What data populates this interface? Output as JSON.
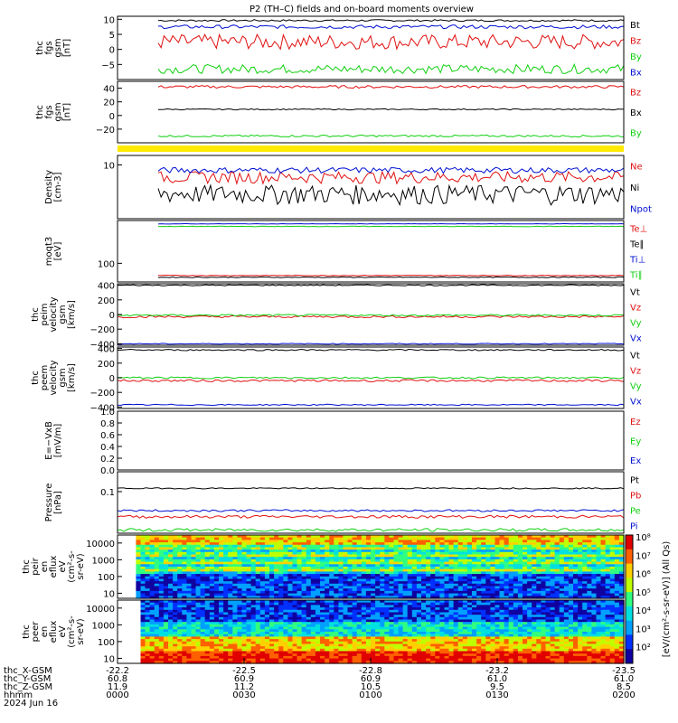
{
  "title": "P2 (TH–C) fields and on-board moments overview",
  "colors": {
    "black": "#000000",
    "red": "#e01010",
    "green": "#10d010",
    "blue": "#0010d0",
    "yellow": "#ffea00"
  },
  "colorbar": {
    "label": "[eV/(cm²-s-sr-eV)] (All Qs)",
    "ticks": [
      "10⁸",
      "10⁷",
      "10⁶",
      "10⁵",
      "10⁴",
      "10³",
      "10²"
    ]
  },
  "ephemeris": {
    "labels": [
      "thc_X-GSM",
      "thc_Y-GSM",
      "thc_Z-GSM",
      "hhmm",
      "2024 Jun 16"
    ],
    "columns": [
      [
        "-22.2",
        "60.8",
        "11.9",
        "0000"
      ],
      [
        "-22.5",
        "60.9",
        "11.2",
        "0030"
      ],
      [
        "-22.8",
        "60.9",
        "10.5",
        "0100"
      ],
      [
        "-23.2",
        "61.0",
        "9.5",
        "0130"
      ],
      [
        "-23.5",
        "61.0",
        "8.5",
        "0200"
      ]
    ]
  },
  "chart_data": [
    {
      "type": "line",
      "ylabel": [
        "thc",
        "fgs",
        "gsm",
        "[nT]"
      ],
      "ylim": [
        -10,
        11
      ],
      "yticks": [
        "10",
        "5",
        "0",
        "−5"
      ],
      "legend": [
        "Bt",
        "Bz",
        "By",
        "Bx"
      ],
      "legend_colors": [
        "black",
        "red",
        "green",
        "blue"
      ],
      "series": [
        {
          "name": "Bt",
          "mean": 9.6,
          "amp": 0.3,
          "color": "black"
        },
        {
          "name": "Bz",
          "mean": 2.5,
          "amp": 2.5,
          "color": "red"
        },
        {
          "name": "By",
          "mean": -6.5,
          "amp": 1.5,
          "color": "green"
        },
        {
          "name": "Bx",
          "mean": 7.5,
          "amp": 0.6,
          "color": "blue"
        }
      ]
    },
    {
      "type": "line",
      "ylabel": [
        "thc",
        "fgs",
        "gsm",
        "[nT]"
      ],
      "ylim": [
        -40,
        50
      ],
      "yticks": [
        "40",
        "20",
        "0",
        "−20"
      ],
      "legend": [
        "Bz",
        "Bx",
        "By"
      ],
      "legend_colors": [
        "red",
        "black",
        "green"
      ],
      "series": [
        {
          "name": "Bz",
          "mean": 42,
          "amp": 2,
          "color": "red"
        },
        {
          "name": "Bx",
          "mean": 9,
          "amp": 0.8,
          "color": "black"
        },
        {
          "name": "By",
          "mean": -30,
          "amp": 1.5,
          "color": "green"
        }
      ]
    },
    {
      "type": "line",
      "ylabel": [
        "Density",
        "[cm-3]"
      ],
      "ylim": [
        1,
        15
      ],
      "yticks": [
        "10"
      ],
      "log": true,
      "legend": [
        "Ne",
        "Ni",
        "Npot"
      ],
      "legend_colors": [
        "red",
        "black",
        "blue"
      ],
      "series": [
        {
          "name": "Ne",
          "mean": 6,
          "amp": 1.5,
          "color": "red"
        },
        {
          "name": "Ni",
          "mean": 3,
          "amp": 1.2,
          "color": "black"
        },
        {
          "name": "Npot",
          "mean": 8,
          "amp": 1,
          "color": "blue"
        }
      ]
    },
    {
      "type": "line",
      "ylabel": [
        "moqt3",
        "[eV]"
      ],
      "ylim": [
        20,
        4000
      ],
      "yticks": [
        "100"
      ],
      "log": true,
      "legend": [
        "Te⊥",
        "Te∥",
        "Ti⊥",
        "Ti∥"
      ],
      "legend_colors": [
        "red",
        "black",
        "blue",
        "green"
      ],
      "series": [
        {
          "name": "Te⊥",
          "mean": 35,
          "amp": 1,
          "color": "red"
        },
        {
          "name": "Te∥",
          "mean": 30,
          "amp": 1,
          "color": "black"
        },
        {
          "name": "Ti⊥",
          "mean": 3000,
          "amp": 50,
          "color": "blue"
        },
        {
          "name": "Ti∥",
          "mean": 2400,
          "amp": 60,
          "color": "green"
        }
      ]
    },
    {
      "type": "line",
      "ylabel": [
        "thc",
        "peim",
        "velocity",
        "gsm",
        "[km/s]"
      ],
      "ylim": [
        -420,
        420
      ],
      "yticks": [
        "400",
        "200",
        "0",
        "−200",
        "−400"
      ],
      "legend": [
        "Vt",
        "Vz",
        "Vy",
        "Vx"
      ],
      "legend_colors": [
        "black",
        "red",
        "green",
        "blue"
      ],
      "series": [
        {
          "name": "Vt",
          "mean": 400,
          "amp": 8,
          "color": "black"
        },
        {
          "name": "Vz",
          "mean": -30,
          "amp": 15,
          "color": "red"
        },
        {
          "name": "Vy",
          "mean": -10,
          "amp": 12,
          "color": "green"
        },
        {
          "name": "Vx",
          "mean": -400,
          "amp": 6,
          "color": "blue"
        }
      ]
    },
    {
      "type": "line",
      "ylabel": [
        "thc",
        "peem",
        "velocity",
        "gsm",
        "[km/s]"
      ],
      "ylim": [
        -420,
        420
      ],
      "yticks": [
        "400",
        "200",
        "0",
        "−200",
        "−400"
      ],
      "legend": [
        "Vt",
        "Vz",
        "Vy",
        "Vx"
      ],
      "legend_colors": [
        "black",
        "red",
        "green",
        "blue"
      ],
      "series": [
        {
          "name": "Vt",
          "mean": 380,
          "amp": 10,
          "color": "black"
        },
        {
          "name": "Vz",
          "mean": -40,
          "amp": 15,
          "color": "red"
        },
        {
          "name": "Vy",
          "mean": 0,
          "amp": 12,
          "color": "green"
        },
        {
          "name": "Vx",
          "mean": -370,
          "amp": 8,
          "color": "blue"
        }
      ]
    },
    {
      "type": "line",
      "ylabel": [
        "E=−VxB",
        "[mV/m]"
      ],
      "ylim": [
        0,
        1
      ],
      "yticks": [
        "1.0",
        "0.8",
        "0.6",
        "0.4",
        "0.2",
        "0.0"
      ],
      "legend": [
        "Ez",
        "Ey",
        "Ex"
      ],
      "legend_colors": [
        "red",
        "green",
        "blue"
      ],
      "series": []
    },
    {
      "type": "line",
      "ylabel": [
        "Pressure",
        "[nPa]"
      ],
      "ylim": [
        0.01,
        0.3
      ],
      "yticks": [
        "0.1"
      ],
      "log": true,
      "legend": [
        "Pt",
        "Pb",
        "Pe",
        "Pi"
      ],
      "legend_colors": [
        "black",
        "red",
        "green",
        "blue"
      ],
      "series": [
        {
          "name": "Pt",
          "mean": 0.12,
          "amp": 0.004,
          "color": "black"
        },
        {
          "name": "Pb",
          "mean": 0.025,
          "amp": 0.002,
          "color": "red"
        },
        {
          "name": "Pe",
          "mean": 0.012,
          "amp": 0.001,
          "color": "green"
        },
        {
          "name": "Pi",
          "mean": 0.035,
          "amp": 0.002,
          "color": "blue"
        }
      ]
    },
    {
      "type": "heatmap",
      "ylabel": [
        "thc",
        "peir",
        "en",
        "eflux",
        "eV",
        "(cm²-s-",
        "sr-eV)"
      ],
      "ylim": [
        5,
        30000
      ],
      "yticks": [
        "10000",
        "1000",
        "100",
        "10"
      ],
      "log": true
    },
    {
      "type": "heatmap",
      "ylabel": [
        "thc",
        "peer",
        "en",
        "eflux",
        "eV",
        "(cm²-s-",
        "sr-eV)"
      ],
      "ylim": [
        5,
        30000
      ],
      "yticks": [
        "10000",
        "1000",
        "100",
        "10"
      ],
      "log": true
    }
  ]
}
